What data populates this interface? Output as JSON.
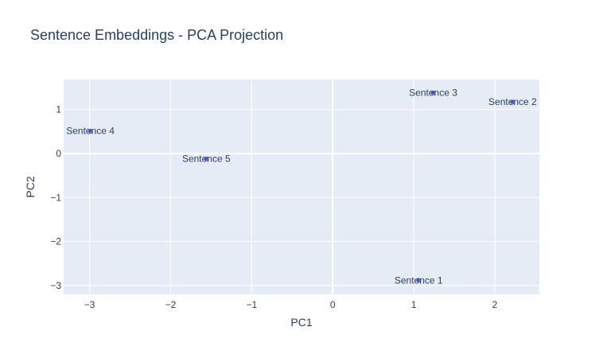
{
  "chart_data": {
    "type": "scatter",
    "title": "Sentence Embeddings - PCA Projection",
    "xlabel": "PC1",
    "ylabel": "PC2",
    "xlim": [
      -3.32,
      2.55
    ],
    "ylim": [
      -3.2,
      1.68
    ],
    "xticks": [
      -3,
      -2,
      -1,
      0,
      1,
      2
    ],
    "yticks": [
      1,
      0,
      -1,
      -2,
      -3
    ],
    "xtick_labels": [
      "−3",
      "−2",
      "−1",
      "0",
      "1",
      "2"
    ],
    "ytick_labels": [
      "1",
      "0",
      "−1",
      "−2",
      "−3"
    ],
    "grid": true,
    "marker_color": "#636efa",
    "plot_bg": "#e5ecf6",
    "points": [
      {
        "label": "Sentence 1",
        "x": 1.06,
        "y": -2.88
      },
      {
        "label": "Sentence 2",
        "x": 2.22,
        "y": 1.17
      },
      {
        "label": "Sentence 3",
        "x": 1.24,
        "y": 1.38
      },
      {
        "label": "Sentence 4",
        "x": -2.99,
        "y": 0.51
      },
      {
        "label": "Sentence 5",
        "x": -1.56,
        "y": -0.12
      }
    ]
  }
}
